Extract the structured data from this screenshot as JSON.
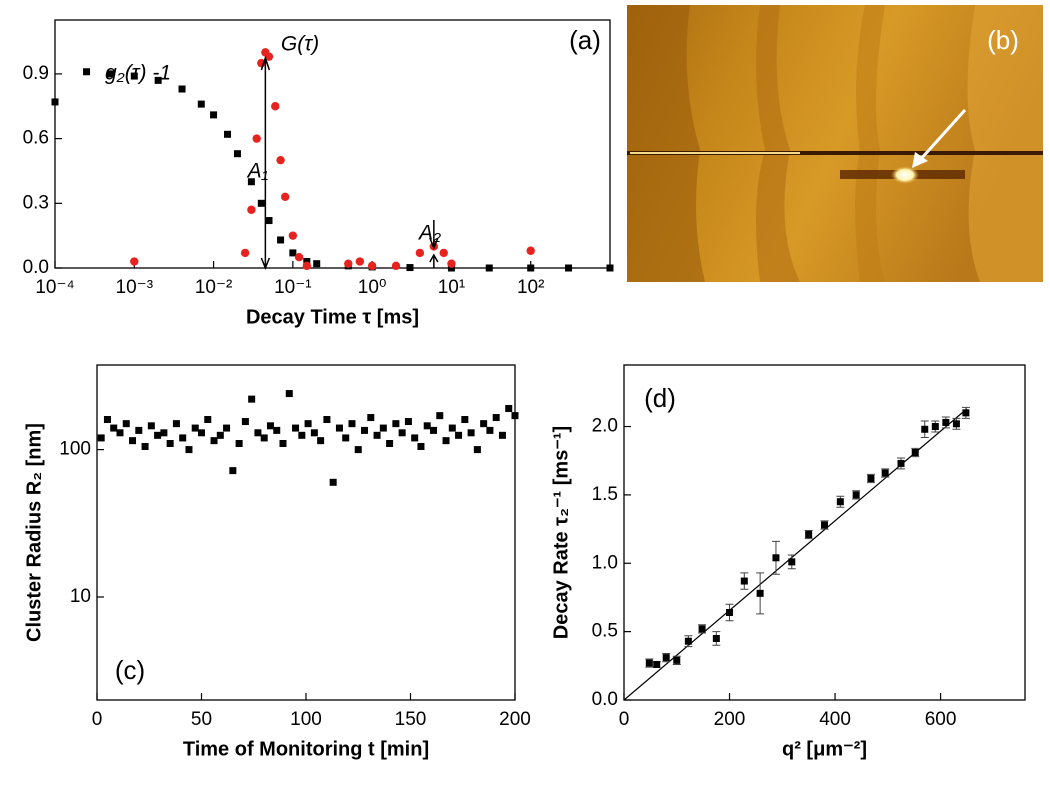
{
  "chart_data": [
    {
      "type": "scatter",
      "panel_label": "(a)",
      "xlabel": "Decay Time τ [ms]",
      "xlog": true,
      "xlim": [
        0.0001,
        1000
      ],
      "ylim": [
        0,
        1.15
      ],
      "xticks": [
        {
          "value": 0.0001,
          "label": "10⁻⁴"
        },
        {
          "value": 0.001,
          "label": "10⁻³"
        },
        {
          "value": 0.01,
          "label": "10⁻²"
        },
        {
          "value": 0.1,
          "label": "10⁻¹"
        },
        {
          "value": 1,
          "label": "10⁰"
        },
        {
          "value": 10,
          "label": "10¹"
        },
        {
          "value": 100,
          "label": "10²"
        }
      ],
      "yticks": [
        {
          "value": 0,
          "label": "0.0"
        },
        0.3,
        0.6,
        0.9
      ],
      "annotations": [
        "A₁",
        "A₂"
      ],
      "series": [
        {
          "name": "g₂(τ) -1",
          "color": "#000000",
          "marker": "square",
          "x": [
            0.0001,
            0.00025,
            0.0005,
            0.001,
            0.002,
            0.004,
            0.007,
            0.01,
            0.015,
            0.02,
            0.03,
            0.04,
            0.05,
            0.07,
            0.1,
            0.15,
            0.2,
            0.5,
            1,
            3,
            10,
            30,
            100,
            300,
            1000
          ],
          "values": [
            0.77,
            0.91,
            0.9,
            0.89,
            0.87,
            0.83,
            0.76,
            0.71,
            0.62,
            0.53,
            0.4,
            0.3,
            0.22,
            0.13,
            0.07,
            0.03,
            0.02,
            0.01,
            0.005,
            0.002,
            0,
            0,
            0,
            0,
            0
          ]
        },
        {
          "name": "G(τ)",
          "color": "#e8231f",
          "marker": "circle",
          "x": [
            0.001,
            0.025,
            0.03,
            0.035,
            0.04,
            0.045,
            0.05,
            0.06,
            0.07,
            0.08,
            0.1,
            0.12,
            0.15,
            0.5,
            0.7,
            1,
            2,
            4,
            6,
            8,
            10,
            100
          ],
          "values": [
            0.03,
            0.07,
            0.27,
            0.6,
            0.95,
            1.0,
            0.98,
            0.75,
            0.5,
            0.33,
            0.15,
            0.05,
            0.01,
            0.02,
            0.03,
            0.01,
            0.01,
            0.07,
            0.1,
            0.07,
            0.02,
            0.08
          ]
        }
      ]
    },
    {
      "type": "scatter",
      "panel_label": "(c)",
      "xlabel": "Time of Monitoring t [min]",
      "ylabel": "Cluster Radius R₂ [nm]",
      "ylog": true,
      "xlim": [
        0,
        200
      ],
      "ylim": [
        2,
        375
      ],
      "xticks": [
        0,
        50,
        100,
        150,
        200
      ],
      "yticks": [
        10,
        100
      ],
      "series": [
        {
          "color": "#000000",
          "marker": "square",
          "x": [
            2,
            5,
            8,
            11,
            14,
            17,
            20,
            23,
            26,
            29,
            32,
            35,
            38,
            41,
            44,
            47,
            50,
            53,
            56,
            59,
            62,
            65,
            68,
            71,
            74,
            77,
            80,
            83,
            86,
            89,
            92,
            95,
            98,
            101,
            104,
            107,
            110,
            113,
            116,
            119,
            122,
            125,
            128,
            131,
            134,
            137,
            140,
            143,
            146,
            149,
            152,
            155,
            158,
            161,
            164,
            167,
            170,
            173,
            176,
            179,
            182,
            185,
            188,
            191,
            194,
            197,
            200
          ],
          "values": [
            120,
            160,
            140,
            130,
            150,
            115,
            135,
            105,
            145,
            125,
            130,
            110,
            150,
            120,
            100,
            140,
            130,
            160,
            115,
            125,
            140,
            72,
            110,
            155,
            220,
            130,
            120,
            145,
            135,
            110,
            240,
            140,
            125,
            150,
            130,
            115,
            160,
            60,
            140,
            120,
            150,
            100,
            135,
            165,
            125,
            140,
            110,
            150,
            130,
            155,
            120,
            105,
            145,
            135,
            170,
            115,
            140,
            125,
            160,
            130,
            100,
            150,
            135,
            165,
            125,
            190,
            170
          ]
        }
      ]
    },
    {
      "type": "scatter",
      "panel_label": "(d)",
      "xlabel": "q² [μm⁻²]",
      "ylabel": "Decay Rate τ₂⁻¹ [ms⁻¹]",
      "xlim": [
        0,
        760
      ],
      "ylim": [
        0,
        2.45
      ],
      "xticks": [
        0,
        200,
        400,
        600
      ],
      "yticks": [
        {
          "value": 0,
          "label": "0.0"
        },
        0.5,
        {
          "value": 1,
          "label": "1.0"
        },
        1.5,
        {
          "value": 2,
          "label": "2.0"
        }
      ],
      "series": [
        {
          "color": "#000000",
          "marker": "square",
          "x": [
            48,
            62,
            80,
            100,
            122,
            148,
            175,
            200,
            228,
            258,
            288,
            318,
            350,
            380,
            410,
            440,
            468,
            495,
            525,
            552,
            570,
            590,
            610,
            630,
            648
          ],
          "values": [
            0.27,
            0.26,
            0.31,
            0.29,
            0.43,
            0.52,
            0.45,
            0.64,
            0.87,
            0.78,
            1.04,
            1.01,
            1.21,
            1.28,
            1.45,
            1.5,
            1.62,
            1.66,
            1.73,
            1.81,
            1.98,
            2.0,
            2.03,
            2.02,
            2.1
          ],
          "errors": [
            0.03,
            0.02,
            0.03,
            0.03,
            0.04,
            0.03,
            0.05,
            0.06,
            0.06,
            0.15,
            0.12,
            0.05,
            0.03,
            0.03,
            0.04,
            0.03,
            0.03,
            0.03,
            0.04,
            0.03,
            0.06,
            0.04,
            0.04,
            0.04,
            0.04
          ]
        }
      ],
      "fit_line": {
        "x": [
          0,
          650
        ],
        "y": [
          0,
          2.13
        ]
      }
    }
  ],
  "image_panel": {
    "label": "(b)"
  }
}
